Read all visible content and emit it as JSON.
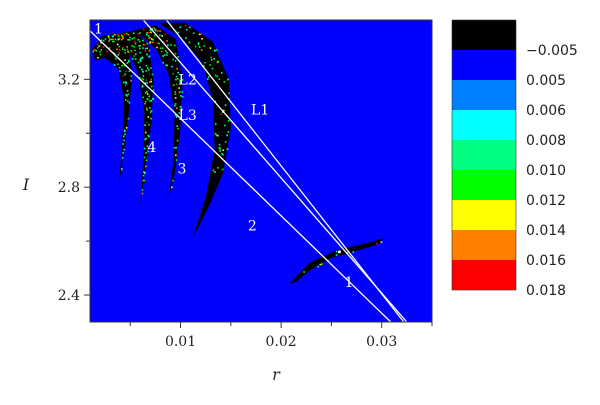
{
  "chart_data": {
    "type": "heatmap",
    "xlabel": "r",
    "ylabel": "I",
    "xlim": [
      0.001,
      0.035
    ],
    "ylim": [
      2.3,
      3.42
    ],
    "x_ticks": [
      {
        "value": 0.01,
        "label": "0.01"
      },
      {
        "value": 0.02,
        "label": "0.02"
      },
      {
        "value": 0.03,
        "label": "0.03"
      }
    ],
    "x_minor_ticks": [
      0.005,
      0.015,
      0.025,
      0.035
    ],
    "y_ticks": [
      {
        "value": 2.4,
        "label": "2.4"
      },
      {
        "value": 2.8,
        "label": "2.8"
      },
      {
        "value": 3.2,
        "label": "3.2"
      }
    ],
    "y_minor_ticks": [
      2.6,
      3.0
    ],
    "background_color": "#0000ff",
    "colorbar": {
      "levels": [
        {
          "label": "−0.005",
          "color": "#000000"
        },
        {
          "label": "0.005",
          "color": "#0000ff"
        },
        {
          "label": "0.006",
          "color": "#0080ff"
        },
        {
          "label": "0.008",
          "color": "#00ffff"
        },
        {
          "label": "0.010",
          "color": "#00ff80"
        },
        {
          "label": "0.012",
          "color": "#00ff00"
        },
        {
          "label": "0.014",
          "color": "#ffff00"
        },
        {
          "label": "0.016",
          "color": "#ff8000"
        },
        {
          "label": "0.018",
          "color": "#ff0000"
        }
      ]
    },
    "lines": [
      {
        "name": "L1",
        "points": [
          [
            0.0086,
            3.42
          ],
          [
            0.0322,
            2.3
          ]
        ]
      },
      {
        "name": "L2",
        "points": [
          [
            0.0063,
            3.42
          ],
          [
            0.0325,
            2.3
          ]
        ]
      },
      {
        "name": "L3",
        "points": [
          [
            0.001,
            3.38
          ],
          [
            0.0309,
            2.3
          ]
        ]
      }
    ],
    "intersection": [
      0.0258,
      2.56
    ],
    "annotations": [
      {
        "text": "1",
        "x": 0.0014,
        "y": 3.37
      },
      {
        "text": "L2",
        "x": 0.0098,
        "y": 3.18
      },
      {
        "text": "L3",
        "x": 0.0098,
        "y": 3.05
      },
      {
        "text": "L1",
        "x": 0.017,
        "y": 3.07
      },
      {
        "text": "4",
        "x": 0.0067,
        "y": 2.93
      },
      {
        "text": "3",
        "x": 0.0097,
        "y": 2.85
      },
      {
        "text": "2",
        "x": 0.0167,
        "y": 2.64
      },
      {
        "text": "1",
        "x": 0.0263,
        "y": 2.43
      }
    ],
    "regions": [
      {
        "name": "region-4",
        "boundary": [
          [
            0.0012,
            3.31
          ],
          [
            0.0022,
            3.36
          ],
          [
            0.0035,
            3.37
          ],
          [
            0.0048,
            3.32
          ],
          [
            0.0052,
            3.22
          ],
          [
            0.0048,
            3.05
          ],
          [
            0.0043,
            2.91
          ],
          [
            0.0039,
            2.81
          ],
          [
            0.0042,
            2.96
          ],
          [
            0.0044,
            3.12
          ],
          [
            0.0038,
            3.24
          ],
          [
            0.0025,
            3.28
          ],
          [
            0.0015,
            3.27
          ]
        ]
      },
      {
        "name": "region-3",
        "boundary": [
          [
            0.0035,
            3.37
          ],
          [
            0.0055,
            3.38
          ],
          [
            0.0068,
            3.33
          ],
          [
            0.0073,
            3.2
          ],
          [
            0.0071,
            3.04
          ],
          [
            0.0065,
            2.87
          ],
          [
            0.006,
            2.73
          ],
          [
            0.0063,
            2.9
          ],
          [
            0.0064,
            3.08
          ],
          [
            0.0058,
            3.22
          ],
          [
            0.0048,
            3.31
          ]
        ]
      },
      {
        "name": "region-2",
        "boundary": [
          [
            0.0052,
            3.38
          ],
          [
            0.0075,
            3.4
          ],
          [
            0.0095,
            3.35
          ],
          [
            0.0102,
            3.2
          ],
          [
            0.01,
            3.02
          ],
          [
            0.0094,
            2.85
          ],
          [
            0.0088,
            2.75
          ],
          [
            0.0093,
            2.9
          ],
          [
            0.0094,
            3.07
          ],
          [
            0.0088,
            3.22
          ],
          [
            0.0076,
            3.31
          ],
          [
            0.0062,
            3.36
          ]
        ]
      },
      {
        "name": "region-1",
        "boundary": [
          [
            0.0078,
            3.41
          ],
          [
            0.0105,
            3.41
          ],
          [
            0.0132,
            3.34
          ],
          [
            0.0148,
            3.2
          ],
          [
            0.015,
            3.02
          ],
          [
            0.0142,
            2.85
          ],
          [
            0.0127,
            2.72
          ],
          [
            0.0112,
            2.61
          ],
          [
            0.0125,
            2.76
          ],
          [
            0.0134,
            2.94
          ],
          [
            0.0132,
            3.12
          ],
          [
            0.0122,
            3.26
          ],
          [
            0.0102,
            3.35
          ]
        ]
      },
      {
        "name": "region-tail",
        "boundary": [
          [
            0.0208,
            2.44
          ],
          [
            0.0228,
            2.52
          ],
          [
            0.0255,
            2.565
          ],
          [
            0.0282,
            2.59
          ],
          [
            0.0302,
            2.61
          ],
          [
            0.0298,
            2.59
          ],
          [
            0.0272,
            2.56
          ],
          [
            0.0248,
            2.535
          ],
          [
            0.0228,
            2.49
          ],
          [
            0.0215,
            2.45
          ]
        ]
      }
    ]
  }
}
